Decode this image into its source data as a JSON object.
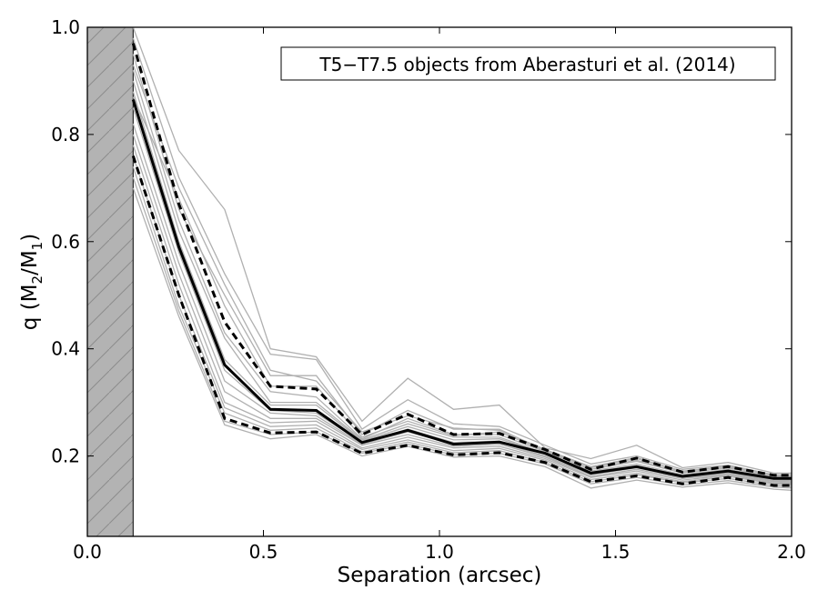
{
  "chart_data": {
    "type": "line",
    "title": "",
    "annotation": "T5−T7.5 objects from Aberasturi et al. (2014)",
    "xlabel": "Separation (arcsec)",
    "ylabel_parts": {
      "main": "q (M",
      "sub1": "2",
      "mid": "/M",
      "sub2": "1",
      "end": ")"
    },
    "xlim": [
      0.0,
      2.0
    ],
    "ylim": [
      0.05,
      1.0
    ],
    "xticks": [
      0.0,
      0.5,
      1.0,
      1.5,
      2.0
    ],
    "xtick_labels": [
      "0.0",
      "0.5",
      "1.0",
      "1.5",
      "2.0"
    ],
    "yticks": [
      0.2,
      0.4,
      0.6,
      0.8,
      1.0
    ],
    "ytick_labels": [
      "0.2",
      "0.4",
      "0.6",
      "0.8",
      "1.0"
    ],
    "shaded_region": {
      "x_from": 0.0,
      "x_to": 0.13,
      "color": "#b3b3b3",
      "hatch": "diagonal"
    },
    "grid": false,
    "colors": {
      "individual": "#b0b0b0",
      "median": "#000000",
      "bounds": "#000000"
    },
    "x": [
      0.13,
      0.26,
      0.39,
      0.52,
      0.65,
      0.78,
      0.91,
      1.04,
      1.17,
      1.3,
      1.43,
      1.56,
      1.69,
      1.82,
      1.95,
      2.0
    ],
    "median": [
      0.865,
      0.59,
      0.37,
      0.287,
      0.285,
      0.225,
      0.248,
      0.222,
      0.226,
      0.205,
      0.168,
      0.18,
      0.162,
      0.172,
      0.158,
      0.158
    ],
    "upper_bound": [
      0.97,
      0.67,
      0.45,
      0.33,
      0.325,
      0.24,
      0.278,
      0.24,
      0.242,
      0.212,
      0.175,
      0.196,
      0.17,
      0.18,
      0.164,
      0.164
    ],
    "lower_bound": [
      0.76,
      0.5,
      0.27,
      0.243,
      0.245,
      0.205,
      0.22,
      0.202,
      0.206,
      0.188,
      0.152,
      0.163,
      0.148,
      0.16,
      0.145,
      0.145
    ],
    "individual_series": [
      [
        1.0,
        0.77,
        0.66,
        0.4,
        0.385,
        0.265,
        0.345,
        0.287,
        0.295,
        0.215,
        0.195,
        0.22,
        0.178,
        0.188,
        0.168,
        0.168
      ],
      [
        0.98,
        0.72,
        0.54,
        0.39,
        0.38,
        0.25,
        0.305,
        0.26,
        0.255,
        0.22,
        0.185,
        0.2,
        0.175,
        0.183,
        0.165,
        0.165
      ],
      [
        0.95,
        0.66,
        0.5,
        0.35,
        0.35,
        0.24,
        0.285,
        0.25,
        0.25,
        0.21,
        0.18,
        0.195,
        0.172,
        0.18,
        0.163,
        0.162
      ],
      [
        0.92,
        0.64,
        0.43,
        0.32,
        0.31,
        0.232,
        0.27,
        0.24,
        0.24,
        0.208,
        0.175,
        0.19,
        0.168,
        0.178,
        0.16,
        0.16
      ],
      [
        0.9,
        0.62,
        0.42,
        0.3,
        0.3,
        0.23,
        0.26,
        0.235,
        0.235,
        0.205,
        0.172,
        0.185,
        0.165,
        0.175,
        0.158,
        0.158
      ],
      [
        0.88,
        0.6,
        0.38,
        0.295,
        0.295,
        0.228,
        0.255,
        0.23,
        0.232,
        0.204,
        0.17,
        0.182,
        0.163,
        0.172,
        0.157,
        0.156
      ],
      [
        0.85,
        0.58,
        0.36,
        0.285,
        0.28,
        0.225,
        0.25,
        0.225,
        0.228,
        0.203,
        0.168,
        0.18,
        0.161,
        0.17,
        0.155,
        0.154
      ],
      [
        0.82,
        0.56,
        0.34,
        0.28,
        0.275,
        0.222,
        0.245,
        0.222,
        0.225,
        0.2,
        0.165,
        0.178,
        0.16,
        0.168,
        0.153,
        0.152
      ],
      [
        0.8,
        0.54,
        0.32,
        0.27,
        0.27,
        0.22,
        0.24,
        0.218,
        0.222,
        0.198,
        0.162,
        0.175,
        0.158,
        0.166,
        0.152,
        0.15
      ],
      [
        0.78,
        0.52,
        0.3,
        0.262,
        0.265,
        0.215,
        0.235,
        0.215,
        0.218,
        0.195,
        0.16,
        0.172,
        0.155,
        0.164,
        0.15,
        0.148
      ],
      [
        0.76,
        0.5,
        0.29,
        0.255,
        0.258,
        0.212,
        0.23,
        0.21,
        0.214,
        0.192,
        0.156,
        0.168,
        0.152,
        0.162,
        0.148,
        0.146
      ],
      [
        0.74,
        0.48,
        0.28,
        0.248,
        0.252,
        0.208,
        0.226,
        0.206,
        0.21,
        0.188,
        0.152,
        0.165,
        0.15,
        0.158,
        0.145,
        0.143
      ],
      [
        0.72,
        0.47,
        0.265,
        0.24,
        0.245,
        0.205,
        0.222,
        0.202,
        0.205,
        0.185,
        0.148,
        0.16,
        0.146,
        0.154,
        0.142,
        0.14
      ],
      [
        0.7,
        0.46,
        0.258,
        0.232,
        0.24,
        0.2,
        0.218,
        0.198,
        0.2,
        0.18,
        0.14,
        0.155,
        0.142,
        0.15,
        0.138,
        0.136
      ],
      [
        0.87,
        0.68,
        0.48,
        0.33,
        0.33,
        0.235,
        0.265,
        0.238,
        0.245,
        0.21,
        0.178,
        0.192,
        0.168,
        0.178,
        0.16,
        0.16
      ],
      [
        0.93,
        0.7,
        0.52,
        0.36,
        0.34,
        0.245,
        0.275,
        0.252,
        0.248,
        0.212,
        0.18,
        0.197,
        0.17,
        0.182,
        0.162,
        0.161
      ]
    ]
  }
}
